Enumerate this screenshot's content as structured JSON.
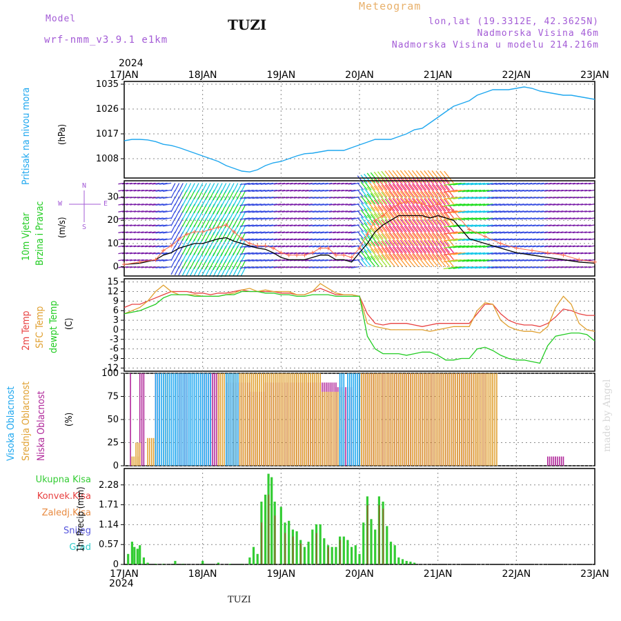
{
  "header": {
    "model_label": "Model",
    "model_name": "wrf-nmm_v3.9.1 e1km",
    "station": "TUZI",
    "product": "Meteogram",
    "lonlat": "lon,lat (19.3312E, 42.3625N)",
    "elevation": "Nadmorska Visina 46m",
    "model_elevation": "Nadmorska Visina u modelu 214.216m",
    "watermark": "made by Angel",
    "footer_station": "TUZI"
  },
  "time_axis": {
    "year_label": "2024",
    "days": [
      "17JAN",
      "18JAN",
      "19JAN",
      "20JAN",
      "21JAN",
      "22JAN",
      "23JAN"
    ]
  },
  "colors": {
    "pressure": "#1ea7ef",
    "wind_speed": "#000000",
    "gust": "#ff6b4a",
    "t2m": "#e84040",
    "sfc_temp": "#e0a030",
    "dewpoint": "#22cc22",
    "cloud_high": "#1ea7ef",
    "cloud_mid": "#e0a030",
    "cloud_low": "#b0279a",
    "precip_total": "#33cc33",
    "precip_conv": "#e84040",
    "precip_frozen": "#e88a40",
    "precip_snow": "#5555dd",
    "precip_grad": "#33cccc"
  },
  "chart_data": [
    {
      "type": "line",
      "panel": "pressure",
      "ylabel": "(hPa)",
      "side_labels": [
        "Pritisak na nivou mora"
      ],
      "yticks": [
        1008,
        1017,
        1026,
        1035
      ],
      "ylim": [
        1001,
        1036
      ],
      "x_days": [
        0,
        0.1,
        0.2,
        0.3,
        0.4,
        0.5,
        0.6,
        0.7,
        0.8,
        0.9,
        1.0,
        1.1,
        1.2,
        1.3,
        1.4,
        1.5,
        1.6,
        1.7,
        1.8,
        1.9,
        2.0,
        2.1,
        2.2,
        2.3,
        2.4,
        2.5,
        2.6,
        2.7,
        2.8,
        2.9,
        3.0,
        3.1,
        3.2,
        3.3,
        3.4,
        3.5,
        3.6,
        3.7,
        3.8,
        3.9,
        4.0,
        4.1,
        4.2,
        4.3,
        4.4,
        4.5,
        4.6,
        4.7,
        4.8,
        4.9,
        5.0,
        5.1,
        5.2,
        5.3,
        5.4,
        5.5,
        5.6,
        5.7,
        5.8,
        5.9,
        6.0
      ],
      "values": [
        1014.5,
        1015,
        1015,
        1014.8,
        1014.2,
        1013.2,
        1012.8,
        1012,
        1011,
        1010,
        1009,
        1008,
        1007,
        1005.5,
        1004.5,
        1003.5,
        1003.2,
        1004,
        1005.5,
        1006.5,
        1007,
        1008,
        1009,
        1009.8,
        1010,
        1010.5,
        1011,
        1011,
        1011,
        1012,
        1013,
        1014,
        1015,
        1015,
        1015,
        1016,
        1017,
        1018.5,
        1019,
        1021,
        1023,
        1025,
        1027,
        1028,
        1029,
        1031,
        1032,
        1033,
        1033,
        1033,
        1033.5,
        1034,
        1033.5,
        1032.5,
        1032,
        1031.5,
        1031,
        1031,
        1030.5,
        1030,
        1029.5
      ]
    },
    {
      "type": "line",
      "panel": "wind",
      "ylabel": "(m/s)",
      "side_labels": [
        "10m Vjetar",
        "Brzina i Pravac"
      ],
      "direction_legend": {
        "n": "N",
        "s": "S",
        "e": "E",
        "w": "W"
      },
      "yticks": [
        0,
        10,
        20,
        30
      ],
      "ylim": [
        -4,
        37
      ],
      "x_days": [
        0,
        0.2,
        0.4,
        0.5,
        0.6,
        0.7,
        0.8,
        0.9,
        1.0,
        1.1,
        1.2,
        1.3,
        1.4,
        1.5,
        1.6,
        1.7,
        1.8,
        1.9,
        2.0,
        2.1,
        2.2,
        2.3,
        2.4,
        2.5,
        2.6,
        2.7,
        2.8,
        2.9,
        3.0,
        3.1,
        3.2,
        3.3,
        3.4,
        3.5,
        3.6,
        3.7,
        3.8,
        3.9,
        4.0,
        4.2,
        4.4,
        4.6,
        4.8,
        5.0,
        5.2,
        5.4,
        5.6,
        5.8,
        6.0
      ],
      "values": [
        1,
        1.5,
        3,
        5,
        6,
        8,
        9,
        10,
        10,
        11,
        12,
        12.5,
        11,
        10,
        9,
        8,
        7.5,
        6,
        4,
        3,
        3,
        3,
        4,
        5,
        5,
        3,
        3,
        2,
        6,
        10,
        15,
        18,
        20,
        22,
        22,
        22,
        22,
        21,
        22,
        20,
        12,
        10,
        8,
        6,
        5,
        4,
        3,
        2,
        1.5
      ],
      "gust_values": [
        1,
        2,
        3,
        7,
        9,
        12,
        14,
        15,
        15,
        16,
        17,
        18,
        15,
        12,
        10,
        9,
        9,
        8,
        6,
        5,
        5,
        5,
        6,
        8,
        8,
        5,
        5,
        4,
        8,
        14,
        20,
        22,
        25,
        27,
        28,
        28,
        27,
        26,
        27,
        24,
        16,
        13,
        10,
        8,
        7,
        6,
        5,
        3,
        2
      ]
    },
    {
      "type": "line",
      "panel": "temperature",
      "ylabel": "(C)",
      "side_labels": [
        "2m Temp",
        "SFC Temp",
        "dewpt Temp"
      ],
      "yticks": [
        -12,
        -9,
        -6,
        -3,
        0,
        3,
        6,
        9,
        12,
        15
      ],
      "ylim": [
        -13,
        16
      ],
      "x_days": [
        0,
        0.1,
        0.2,
        0.3,
        0.4,
        0.5,
        0.6,
        0.7,
        0.8,
        0.9,
        1.0,
        1.1,
        1.2,
        1.3,
        1.4,
        1.5,
        1.6,
        1.7,
        1.8,
        1.9,
        2.0,
        2.1,
        2.2,
        2.3,
        2.4,
        2.5,
        2.6,
        2.7,
        2.8,
        2.9,
        3.0,
        3.1,
        3.2,
        3.3,
        3.4,
        3.5,
        3.6,
        3.7,
        3.8,
        3.9,
        4.0,
        4.1,
        4.2,
        4.3,
        4.4,
        4.5,
        4.6,
        4.7,
        4.8,
        4.9,
        5.0,
        5.1,
        5.2,
        5.3,
        5.4,
        5.5,
        5.6,
        5.7,
        5.8,
        5.9,
        6.0
      ],
      "series": [
        {
          "key": "t2m",
          "values": [
            7,
            8,
            8,
            9,
            10,
            11,
            12,
            12,
            12,
            11.5,
            11.5,
            11,
            11.5,
            11.5,
            12,
            12.5,
            12,
            12,
            12,
            12,
            11.5,
            11.5,
            11,
            11,
            12,
            13,
            12,
            11,
            11,
            11,
            10.5,
            5,
            2,
            1.5,
            2,
            2,
            2,
            1.5,
            1,
            1.5,
            2,
            2,
            2,
            2,
            2,
            5,
            8,
            8,
            5,
            3,
            2,
            1.5,
            1.5,
            1,
            2,
            4,
            6.5,
            6,
            5,
            4.5,
            4.5
          ]
        },
        {
          "key": "sfc_temp",
          "values": [
            5,
            6,
            7,
            9,
            12,
            14,
            12,
            11,
            11,
            11,
            10.5,
            10.5,
            10.5,
            11,
            11.5,
            12.5,
            13,
            12,
            12.5,
            12,
            12,
            12,
            11,
            11,
            12,
            14.5,
            13,
            11.5,
            11,
            11,
            10.5,
            2,
            1,
            0.5,
            0,
            0,
            0,
            0,
            0,
            -0.5,
            0,
            0.5,
            1,
            1,
            1,
            6,
            8.5,
            8,
            3,
            1,
            0,
            -0.5,
            -0.5,
            -1,
            1,
            7,
            10.5,
            8,
            2,
            0,
            -0.5
          ]
        },
        {
          "key": "dewpoint",
          "values": [
            5,
            5.5,
            6,
            7,
            8,
            10,
            11,
            11,
            11,
            10.5,
            10.5,
            10.5,
            10.5,
            11,
            11,
            12,
            12,
            12,
            11.5,
            11.5,
            11,
            11,
            10.5,
            10.5,
            11,
            11,
            11,
            10.5,
            10.5,
            10.5,
            10.5,
            -2,
            -6,
            -7.5,
            -7.5,
            -7.5,
            -8,
            -7.5,
            -7,
            -7,
            -8,
            -9.5,
            -9.5,
            -9,
            -9,
            -6,
            -5.5,
            -6.5,
            -8,
            -9,
            -9.5,
            -9.5,
            -10,
            -10.5,
            -5,
            -2,
            -1.5,
            -1,
            -1,
            -1.5,
            -3.5
          ]
        }
      ]
    },
    {
      "type": "bar",
      "panel": "cloud",
      "ylabel": "(%)",
      "side_labels": [
        "Visoka Oblacnost",
        "Srednja Oblacnost",
        "Niska Oblacnost"
      ],
      "yticks": [
        0,
        25,
        50,
        75,
        100
      ],
      "ylim": [
        0,
        100
      ],
      "dx_days": 0.025,
      "series": [
        {
          "key": "cloud_low",
          "segments": [
            [
              0.08,
              0.1,
              100
            ],
            [
              0.2,
              0.25,
              100
            ],
            [
              0.4,
              0.45,
              100
            ],
            [
              0.7,
              0.8,
              100
            ],
            [
              1.0,
              1.2,
              100
            ],
            [
              1.3,
              1.6,
              90
            ],
            [
              1.6,
              1.8,
              80
            ],
            [
              1.8,
              2.2,
              90
            ],
            [
              2.2,
              2.4,
              90
            ],
            [
              2.4,
              2.7,
              90
            ],
            [
              2.7,
              2.9,
              85
            ],
            [
              3.0,
              3.3,
              100
            ],
            [
              3.3,
              3.5,
              100
            ],
            [
              3.5,
              3.9,
              100
            ],
            [
              3.9,
              4.3,
              100
            ],
            [
              4.3,
              4.6,
              100
            ],
            [
              5.4,
              5.5,
              10
            ],
            [
              5.5,
              5.6,
              10
            ]
          ]
        },
        {
          "key": "cloud_mid",
          "segments": [
            [
              0.1,
              0.2,
              10
            ],
            [
              0.15,
              0.2,
              25
            ],
            [
              0.3,
              0.4,
              30
            ],
            [
              0.5,
              0.55,
              100
            ],
            [
              1.2,
              1.4,
              100
            ],
            [
              1.4,
              1.7,
              100
            ],
            [
              1.7,
              2.0,
              100
            ],
            [
              2.0,
              2.2,
              100
            ],
            [
              2.2,
              2.3,
              100
            ],
            [
              2.3,
              2.5,
              100
            ],
            [
              2.5,
              2.8,
              80
            ],
            [
              3.0,
              3.2,
              100
            ],
            [
              3.2,
              3.5,
              100
            ],
            [
              3.5,
              4.0,
              100
            ],
            [
              4.0,
              4.5,
              100
            ],
            [
              4.5,
              4.7,
              100
            ],
            [
              4.7,
              4.75,
              100
            ]
          ]
        },
        {
          "key": "cloud_high",
          "segments": [
            [
              0.4,
              0.65,
              100
            ],
            [
              0.65,
              0.85,
              100
            ],
            [
              0.85,
              1.0,
              100
            ],
            [
              1.0,
              1.1,
              100
            ],
            [
              1.3,
              1.45,
              100
            ],
            [
              2.75,
              2.8,
              100
            ],
            [
              2.75,
              2.78,
              40
            ],
            [
              2.85,
              3.0,
              100
            ]
          ]
        }
      ]
    },
    {
      "type": "bar",
      "panel": "precip",
      "ylabel": "1hr Precip (mm)",
      "legend": [
        "Ukupna Kisa",
        "Konvek.Kisa",
        "Zaledj.Kisa",
        "Snijeg",
        "Grad"
      ],
      "yticks": [
        0,
        0.57,
        1.14,
        1.71,
        2.28
      ],
      "ylim": [
        0,
        2.75
      ],
      "dx_days": 0.033,
      "total": [
        [
          0.05,
          0.3
        ],
        [
          0.1,
          0.65
        ],
        [
          0.13,
          0.5
        ],
        [
          0.17,
          0.45
        ],
        [
          0.2,
          0.55
        ],
        [
          0.25,
          0.2
        ],
        [
          0.3,
          0.05
        ],
        [
          0.4,
          0.02
        ],
        [
          0.5,
          0.02
        ],
        [
          0.65,
          0.1
        ],
        [
          0.75,
          0.02
        ],
        [
          1.0,
          0.1
        ],
        [
          1.2,
          0.05
        ],
        [
          1.35,
          0.02
        ],
        [
          1.5,
          0.02
        ],
        [
          1.6,
          0.2
        ],
        [
          1.65,
          0.5
        ],
        [
          1.7,
          0.3
        ],
        [
          1.75,
          1.8
        ],
        [
          1.8,
          2.0
        ],
        [
          1.84,
          2.6
        ],
        [
          1.88,
          2.5
        ],
        [
          1.92,
          1.8
        ],
        [
          2.0,
          1.65
        ],
        [
          2.05,
          1.2
        ],
        [
          2.1,
          1.25
        ],
        [
          2.15,
          1.0
        ],
        [
          2.2,
          0.95
        ],
        [
          2.25,
          0.7
        ],
        [
          2.3,
          0.5
        ],
        [
          2.35,
          0.65
        ],
        [
          2.4,
          1.0
        ],
        [
          2.45,
          1.15
        ],
        [
          2.5,
          1.15
        ],
        [
          2.55,
          0.75
        ],
        [
          2.6,
          0.55
        ],
        [
          2.65,
          0.5
        ],
        [
          2.7,
          0.5
        ],
        [
          2.75,
          0.8
        ],
        [
          2.8,
          0.8
        ],
        [
          2.85,
          0.7
        ],
        [
          2.9,
          0.5
        ],
        [
          2.95,
          0.55
        ],
        [
          3.0,
          0.3
        ],
        [
          3.05,
          1.2
        ],
        [
          3.1,
          1.95
        ],
        [
          3.15,
          1.3
        ],
        [
          3.2,
          1.0
        ],
        [
          3.25,
          1.95
        ],
        [
          3.3,
          1.8
        ],
        [
          3.35,
          1.1
        ],
        [
          3.4,
          0.65
        ],
        [
          3.45,
          0.55
        ],
        [
          3.5,
          0.2
        ],
        [
          3.55,
          0.15
        ],
        [
          3.6,
          0.1
        ],
        [
          3.65,
          0.08
        ],
        [
          3.7,
          0.05
        ]
      ],
      "convective": [
        [
          1.75,
          1.2
        ],
        [
          1.84,
          2.0
        ],
        [
          1.92,
          1.4
        ],
        [
          2.05,
          0.9
        ],
        [
          2.15,
          0.8
        ],
        [
          2.25,
          0.6
        ],
        [
          2.45,
          0.9
        ],
        [
          2.6,
          0.5
        ],
        [
          2.75,
          0.7
        ],
        [
          3.1,
          1.7
        ],
        [
          3.25,
          1.7
        ],
        [
          3.3,
          1.6
        ]
      ]
    }
  ]
}
